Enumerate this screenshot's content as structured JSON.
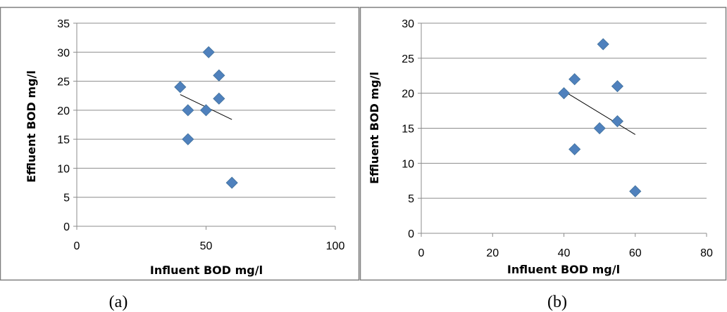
{
  "chart_data": [
    {
      "type": "scatter",
      "caption": "(a)",
      "xlabel": "Influent BOD mg/l",
      "ylabel": "Effluent BOD mg/l",
      "xlim": [
        0,
        100
      ],
      "ylim": [
        0,
        35
      ],
      "xticks": [
        0,
        50,
        100
      ],
      "yticks": [
        0,
        5,
        10,
        15,
        20,
        25,
        30,
        35
      ],
      "grid": "horizontal",
      "marker_color": "#4F81BD",
      "points": [
        {
          "x": 40,
          "y": 24
        },
        {
          "x": 43,
          "y": 20
        },
        {
          "x": 43,
          "y": 15
        },
        {
          "x": 50,
          "y": 20
        },
        {
          "x": 51,
          "y": 30
        },
        {
          "x": 55,
          "y": 26
        },
        {
          "x": 55,
          "y": 22
        },
        {
          "x": 60,
          "y": 7.5
        }
      ],
      "trendline": {
        "x": [
          40,
          60
        ],
        "y": [
          22.7,
          18.4
        ]
      }
    },
    {
      "type": "scatter",
      "caption": "(b)",
      "xlabel": "Influent BOD mg/l",
      "ylabel": "Effluent BOD mg/l",
      "xlim": [
        0,
        80
      ],
      "ylim": [
        0,
        30
      ],
      "xticks": [
        0,
        20,
        40,
        60,
        80
      ],
      "yticks": [
        0,
        5,
        10,
        15,
        20,
        25,
        30
      ],
      "grid": "horizontal",
      "marker_color": "#4F81BD",
      "points": [
        {
          "x": 40,
          "y": 20
        },
        {
          "x": 43,
          "y": 22
        },
        {
          "x": 43,
          "y": 12
        },
        {
          "x": 50,
          "y": 15
        },
        {
          "x": 51,
          "y": 27
        },
        {
          "x": 55,
          "y": 21
        },
        {
          "x": 55,
          "y": 16
        },
        {
          "x": 60,
          "y": 6
        }
      ],
      "trendline": {
        "x": [
          40,
          60
        ],
        "y": [
          20.3,
          14.1
        ]
      }
    }
  ]
}
